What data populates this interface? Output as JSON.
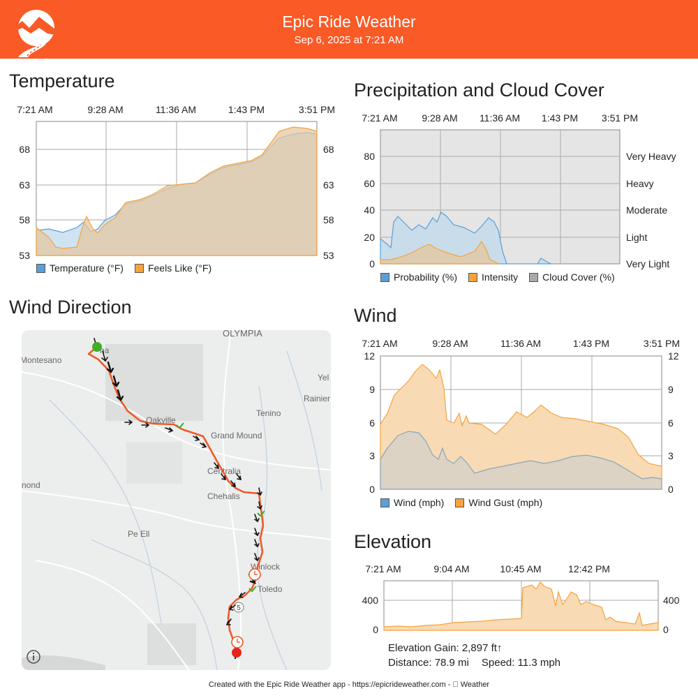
{
  "header": {
    "title": "Epic Ride Weather",
    "subtitle": "Sep 6, 2025 at 7:21 AM",
    "color": "#fa5a26",
    "logo": "mountain-road-logo"
  },
  "temperature": {
    "title": "Temperature",
    "time_labels": [
      "7:21 AM",
      "9:28 AM",
      "11:36 AM",
      "1:43 PM",
      "3:51 PM"
    ],
    "y_ticks": [
      "68",
      "63",
      "58",
      "53"
    ],
    "legend": [
      {
        "label": "Temperature (°F)",
        "color": "#5b9fd6"
      },
      {
        "label": "Feels Like (°F)",
        "color": "#f6a33c"
      }
    ]
  },
  "precip": {
    "title": "Precipitation and Cloud Cover",
    "time_labels": [
      "7:21 AM",
      "9:28 AM",
      "11:36 AM",
      "1:43 PM",
      "3:51 PM"
    ],
    "y_ticks": [
      "80",
      "60",
      "40",
      "20",
      "0"
    ],
    "right_ticks": [
      "Very Heavy",
      "Heavy",
      "Moderate",
      "Light",
      "Very Light"
    ],
    "legend": [
      {
        "label": "Probability (%)",
        "color": "#5b9fd6"
      },
      {
        "label": "Intensity",
        "color": "#f6a33c"
      },
      {
        "label": "Cloud Cover (%)",
        "color": "#a9a9a9"
      }
    ]
  },
  "wind_direction": {
    "title": "Wind Direction",
    "places": [
      {
        "name": "OLYMPIA"
      },
      {
        "name": "Montesano"
      },
      {
        "name": "Yel"
      },
      {
        "name": "Rainier"
      },
      {
        "name": "Tenino"
      },
      {
        "name": "Oakville"
      },
      {
        "name": "Grand Mound"
      },
      {
        "name": "Centralia"
      },
      {
        "name": "Chehalis"
      },
      {
        "name": "nond"
      },
      {
        "name": "Pe Ell"
      },
      {
        "name": "Winlock"
      },
      {
        "name": "Toledo"
      },
      {
        "name": "5"
      },
      {
        "name": "na"
      }
    ],
    "route_color": "#f05a28",
    "start_color": "#3fae29",
    "end_color": "#e8231c"
  },
  "wind": {
    "title": "Wind",
    "time_labels": [
      "7:21 AM",
      "9:28 AM",
      "11:36 AM",
      "1:43 PM",
      "3:51 PM"
    ],
    "y_ticks": [
      "12",
      "9",
      "6",
      "3",
      "0"
    ],
    "legend": [
      {
        "label": "Wind (mph)",
        "color": "#5b9fd6"
      },
      {
        "label": "Wind Gust (mph)",
        "color": "#f6a33c"
      }
    ]
  },
  "elevation": {
    "title": "Elevation",
    "time_labels": [
      "7:21 AM",
      "9:04 AM",
      "10:45 AM",
      "12:42 PM"
    ],
    "y_ticks": [
      "400",
      "0"
    ],
    "gain": "Elevation Gain: 2,897 ft↑",
    "distance": "Distance: 78.9 mi",
    "speed": "Speed: 11.3 mph"
  },
  "footer": {
    "text": "Created with the Epic Ride Weather app - https://epicrideweather.com -  Weather"
  }
}
